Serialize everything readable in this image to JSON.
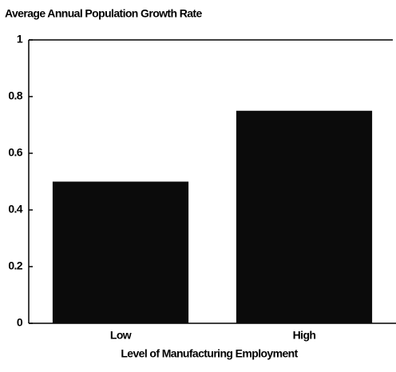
{
  "chart_data": {
    "type": "bar",
    "title": "Average Annual Population Growth Rate",
    "x_label": "Level of Manufacturing Employment",
    "categories": [
      "Low",
      "High"
    ],
    "values": [
      0.5,
      0.75
    ],
    "color": "#0b0b0b",
    "ylim": [
      0,
      1
    ],
    "yticks": [
      0,
      0.2,
      0.4,
      0.6,
      0.8,
      1
    ],
    "grid": false
  }
}
